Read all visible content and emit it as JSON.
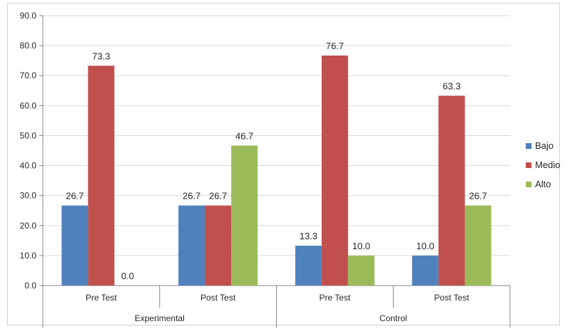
{
  "chart_data": {
    "type": "bar",
    "title": "",
    "xlabel": "",
    "ylabel": "",
    "ylim": [
      0,
      90
    ],
    "yticks": [
      "0.0",
      "10.0",
      "20.0",
      "30.0",
      "40.0",
      "50.0",
      "60.0",
      "70.0",
      "80.0",
      "90.0"
    ],
    "grid": true,
    "legend_position": "right",
    "groups": [
      "Experimental",
      "Control"
    ],
    "categories": [
      "Pre Test",
      "Post Test",
      "Pre Test",
      "Post Test"
    ],
    "category_group": [
      0,
      0,
      1,
      1
    ],
    "series": [
      {
        "name": "Bajo",
        "color": "#4f81bd",
        "values": [
          26.7,
          26.7,
          13.3,
          10.0
        ],
        "labels": [
          "26.7",
          "26.7",
          "13.3",
          "10.0"
        ]
      },
      {
        "name": "Medio",
        "color": "#c0504d",
        "values": [
          73.3,
          26.7,
          76.7,
          63.3
        ],
        "labels": [
          "73.3",
          "26.7",
          "76.7",
          "63.3"
        ]
      },
      {
        "name": "Alto",
        "color": "#9bbb59",
        "values": [
          0.0,
          46.7,
          10.0,
          26.7
        ],
        "labels": [
          "0.0",
          "46.7",
          "10.0",
          "26.7"
        ]
      }
    ]
  }
}
